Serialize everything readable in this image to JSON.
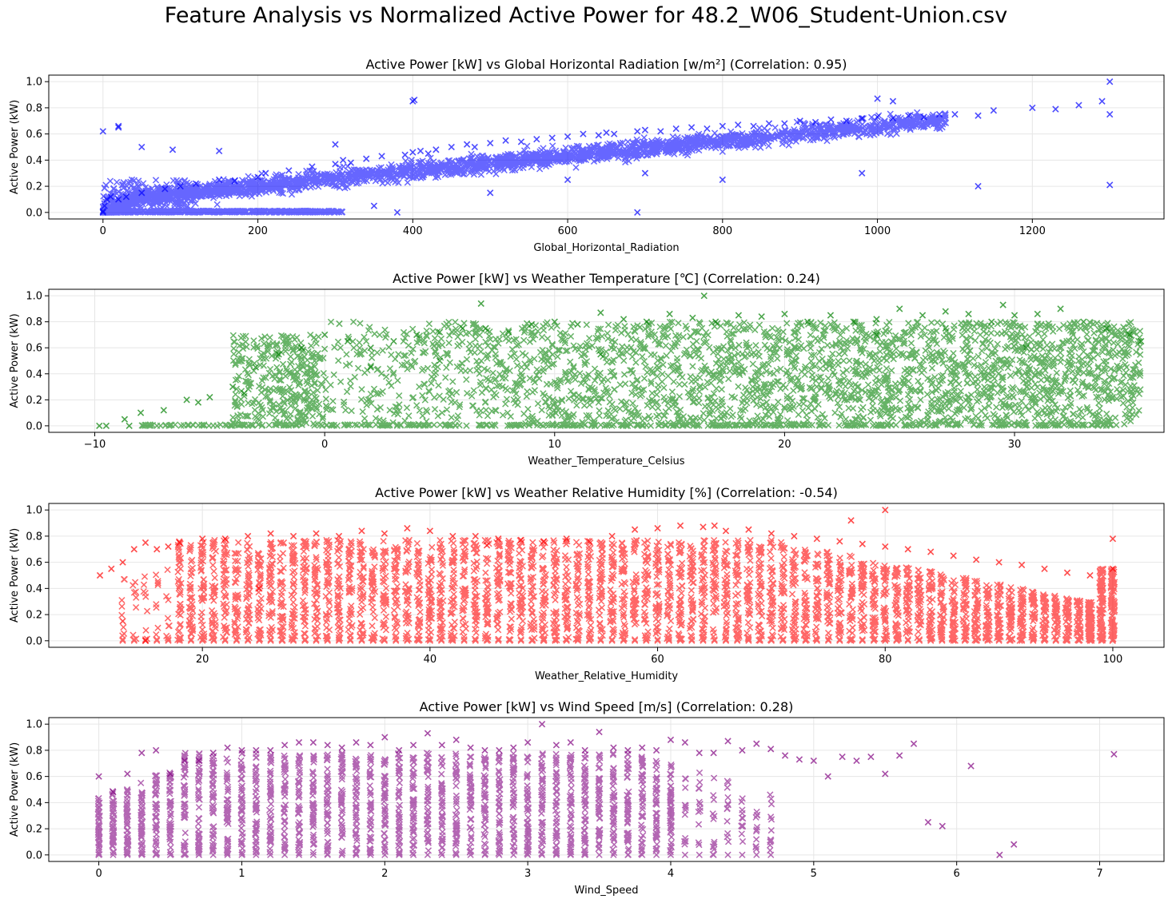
{
  "figure": {
    "suptitle": "Feature Analysis vs Normalized Active Power for 48.2_W06_Student-Union.csv"
  },
  "chart_data": [
    {
      "type": "scatter",
      "title": "Active Power [kW] vs Global Horizontal Radiation [w/m²] (Correlation: 0.95)",
      "xlabel": "Global_Horizontal_Radiation",
      "ylabel": "Active Power (kW)",
      "color": "#0000ff",
      "marker": "x",
      "grid": true,
      "xlim": [
        -70,
        1370
      ],
      "ylim": [
        -0.05,
        1.05
      ],
      "xticks": [
        0,
        200,
        400,
        600,
        800,
        1000,
        1200
      ],
      "yticks": [
        0.0,
        0.2,
        0.4,
        0.6,
        0.8,
        1.0
      ],
      "series": [
        {
          "x": [
            0,
            0,
            2,
            5,
            10,
            20,
            30,
            50,
            80,
            100,
            120,
            150,
            170,
            200,
            210,
            240,
            270,
            300,
            310,
            320,
            340,
            360,
            390,
            400,
            410,
            420,
            430,
            450,
            470,
            480,
            500,
            520,
            540,
            560,
            580,
            600,
            620,
            640,
            650,
            660,
            690,
            700,
            720,
            740,
            760,
            780,
            800,
            820,
            840,
            860,
            880,
            900,
            920,
            940,
            960,
            980,
            1000,
            1020,
            1040,
            1060,
            1080,
            1100,
            1130,
            1150,
            1200,
            1230,
            1260,
            1290,
            1300,
            1300,
            0,
            20,
            20,
            50,
            90,
            150,
            300,
            400,
            402,
            350,
            380,
            1130,
            1300,
            690,
            980,
            1000,
            1020,
            500,
            600,
            700,
            800
          ],
          "y": [
            0.0,
            0.01,
            0.05,
            0.1,
            0.12,
            0.1,
            0.12,
            0.15,
            0.18,
            0.2,
            0.22,
            0.25,
            0.24,
            0.27,
            0.3,
            0.32,
            0.35,
            0.37,
            0.4,
            0.38,
            0.41,
            0.43,
            0.44,
            0.46,
            0.47,
            0.45,
            0.48,
            0.5,
            0.52,
            0.5,
            0.53,
            0.55,
            0.54,
            0.56,
            0.57,
            0.58,
            0.6,
            0.59,
            0.61,
            0.6,
            0.62,
            0.63,
            0.62,
            0.64,
            0.65,
            0.64,
            0.66,
            0.67,
            0.66,
            0.68,
            0.68,
            0.7,
            0.69,
            0.71,
            0.7,
            0.72,
            0.73,
            0.72,
            0.74,
            0.73,
            0.75,
            0.75,
            0.74,
            0.78,
            0.8,
            0.79,
            0.82,
            0.85,
            1.0,
            0.21,
            0.62,
            0.66,
            0.65,
            0.5,
            0.48,
            0.47,
            0.52,
            0.85,
            0.86,
            0.05,
            0.0,
            0.2,
            0.75,
            0.0,
            0.3,
            0.87,
            0.85,
            0.15,
            0.25,
            0.3,
            0.25
          ]
        }
      ]
    },
    {
      "type": "scatter",
      "title": "Active Power [kW] vs Weather Temperature [℃] (Correlation: 0.24)",
      "xlabel": "Weather_Temperature_Celsius",
      "ylabel": "Active Power (kW)",
      "color": "#008000",
      "marker": "x",
      "grid": true,
      "xlim": [
        -12,
        36.5
      ],
      "ylim": [
        -0.05,
        1.05
      ],
      "xticks": [
        -10,
        0,
        10,
        20,
        30
      ],
      "yticks": [
        0.0,
        0.2,
        0.4,
        0.6,
        0.8,
        1.0
      ],
      "series": [
        {
          "x": [
            -9.8,
            -9.5,
            -8.7,
            -8,
            -7,
            -6,
            -5,
            -4,
            -3,
            -2,
            -1,
            0,
            1,
            2,
            3,
            4,
            5,
            6,
            7,
            8,
            9,
            10,
            11,
            12,
            13,
            14,
            15,
            16,
            16.5,
            17,
            18,
            19,
            20,
            21,
            22,
            23,
            24,
            25,
            26,
            27,
            28,
            29,
            29.5,
            30,
            31,
            32,
            33,
            34,
            35,
            35.5,
            -8.5,
            -5.5,
            -3.5,
            2,
            5,
            6.8,
            12,
            24,
            27,
            30.5
          ],
          "y": [
            0.0,
            0.0,
            0.05,
            0.1,
            0.12,
            0.2,
            0.22,
            0.3,
            0.45,
            0.55,
            0.6,
            0.7,
            0.65,
            0.6,
            0.65,
            0.7,
            0.72,
            0.75,
            0.75,
            0.72,
            0.78,
            0.8,
            0.78,
            0.87,
            0.82,
            0.8,
            0.86,
            0.83,
            1.0,
            0.8,
            0.85,
            0.84,
            0.86,
            0.8,
            0.85,
            0.8,
            0.82,
            0.9,
            0.85,
            0.88,
            0.86,
            0.8,
            0.93,
            0.85,
            0.86,
            0.9,
            0.8,
            0.75,
            0.7,
            0.65,
            0.0,
            0.18,
            0.25,
            0.45,
            0.5,
            0.94,
            0.55,
            0.7,
            0.75,
            0.6
          ]
        }
      ]
    },
    {
      "type": "scatter",
      "title": "Active Power [kW] vs Weather Relative Humidity [%] (Correlation: -0.54)",
      "xlabel": "Weather_Relative_Humidity",
      "ylabel": "Active Power (kW)",
      "color": "#ff0000",
      "marker": "x",
      "grid": true,
      "xlim": [
        6.5,
        104.5
      ],
      "ylim": [
        -0.05,
        1.05
      ],
      "xticks": [
        20,
        40,
        60,
        80,
        100
      ],
      "yticks": [
        0.0,
        0.2,
        0.4,
        0.6,
        0.8,
        1.0
      ],
      "series": [
        {
          "x": [
            11,
            12,
            13,
            14,
            15,
            16,
            17,
            18,
            20,
            22,
            24,
            26,
            28,
            30,
            32,
            34,
            36,
            38,
            40,
            42,
            44,
            46,
            48,
            50,
            52,
            54,
            56,
            58,
            60,
            62,
            64,
            66,
            68,
            70,
            72,
            74,
            76,
            78,
            80,
            82,
            84,
            86,
            88,
            90,
            92,
            94,
            96,
            98,
            100,
            100,
            15,
            13,
            65,
            77,
            80,
            45,
            25
          ],
          "y": [
            0.5,
            0.55,
            0.6,
            0.7,
            0.75,
            0.7,
            0.72,
            0.75,
            0.78,
            0.78,
            0.8,
            0.82,
            0.8,
            0.82,
            0.8,
            0.84,
            0.82,
            0.86,
            0.84,
            0.8,
            0.8,
            0.78,
            0.77,
            0.76,
            0.78,
            0.76,
            0.8,
            0.85,
            0.86,
            0.88,
            0.87,
            0.84,
            0.85,
            0.82,
            0.8,
            0.78,
            0.76,
            0.74,
            0.72,
            0.7,
            0.68,
            0.65,
            0.62,
            0.6,
            0.58,
            0.55,
            0.52,
            0.5,
            0.55,
            0.78,
            0.0,
            0.15,
            0.88,
            0.92,
            1.0,
            0.73,
            0.4
          ]
        }
      ]
    },
    {
      "type": "scatter",
      "title": "Active Power [kW] vs Wind Speed [m/s] (Correlation: 0.28)",
      "xlabel": "Wind_Speed",
      "ylabel": "Active Power (kW)",
      "color": "#800080",
      "marker": "x",
      "grid": true,
      "xlim": [
        -0.35,
        7.45
      ],
      "ylim": [
        -0.05,
        1.05
      ],
      "xticks": [
        0,
        1,
        2,
        3,
        4,
        5,
        6,
        7
      ],
      "yticks": [
        0.0,
        0.2,
        0.4,
        0.6,
        0.8,
        1.0
      ],
      "series": [
        {
          "x": [
            0,
            0.1,
            0.2,
            0.3,
            0.4,
            0.5,
            0.6,
            0.7,
            0.8,
            0.9,
            1.0,
            1.1,
            1.2,
            1.3,
            1.4,
            1.5,
            1.6,
            1.7,
            1.8,
            1.9,
            2.0,
            2.1,
            2.2,
            2.3,
            2.4,
            2.5,
            2.6,
            2.7,
            2.8,
            2.9,
            3.0,
            3.1,
            3.2,
            3.3,
            3.4,
            3.5,
            3.6,
            3.7,
            3.8,
            3.9,
            4.0,
            4.1,
            4.2,
            4.3,
            4.4,
            4.5,
            4.6,
            4.7,
            4.8,
            4.9,
            5.0,
            5.1,
            5.2,
            5.3,
            5.4,
            5.5,
            5.6,
            5.7,
            5.8,
            5.9,
            6.1,
            6.3,
            6.4,
            7.1
          ],
          "y": [
            0.6,
            0.48,
            0.62,
            0.78,
            0.8,
            0.62,
            0.72,
            0.72,
            0.78,
            0.82,
            0.8,
            0.8,
            0.8,
            0.84,
            0.86,
            0.86,
            0.84,
            0.82,
            0.86,
            0.84,
            0.9,
            0.8,
            0.84,
            0.93,
            0.84,
            0.88,
            0.82,
            0.8,
            0.8,
            0.82,
            0.86,
            1.0,
            0.84,
            0.86,
            0.8,
            0.94,
            0.82,
            0.8,
            0.82,
            0.8,
            0.88,
            0.86,
            0.78,
            0.78,
            0.87,
            0.8,
            0.85,
            0.81,
            0.76,
            0.73,
            0.72,
            0.6,
            0.75,
            0.72,
            0.75,
            0.62,
            0.76,
            0.85,
            0.25,
            0.22,
            0.68,
            0.0,
            0.08,
            0.77
          ]
        }
      ]
    }
  ]
}
